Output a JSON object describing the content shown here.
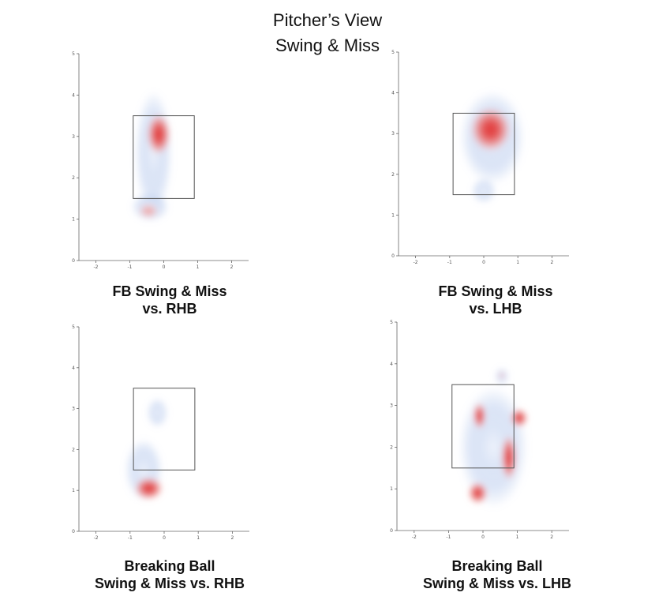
{
  "page": {
    "title_line1": "Pitcher’s View",
    "title_line2": "Swing & Miss"
  },
  "chart_data": [
    {
      "type": "heatmap",
      "title_line1": "FB Swing & Miss",
      "title_line2": "vs. RHB",
      "xlim": [
        -2.5,
        2.5
      ],
      "ylim": [
        0,
        5
      ],
      "x_ticks": [
        -2,
        -1,
        0,
        1,
        2
      ],
      "y_ticks": [
        0,
        1,
        2,
        3,
        4,
        5
      ],
      "strike_zone": {
        "x": [
          -0.9,
          0.9
        ],
        "y": [
          1.5,
          3.5
        ]
      },
      "density_blobs": [
        {
          "x": -0.3,
          "y": 2.6,
          "sx": 0.55,
          "sy": 1.5,
          "level": "low"
        },
        {
          "x": -0.4,
          "y": 1.3,
          "sx": 0.55,
          "sy": 0.35,
          "level": "low"
        },
        {
          "x": -0.15,
          "y": 3.05,
          "sx": 0.35,
          "sy": 0.5,
          "level": "high"
        },
        {
          "x": -0.45,
          "y": 1.2,
          "sx": 0.3,
          "sy": 0.18,
          "level": "medium"
        }
      ]
    },
    {
      "type": "heatmap",
      "title_line1": "FB Swing & Miss",
      "title_line2": "vs. LHB",
      "xlim": [
        -2.5,
        2.5
      ],
      "ylim": [
        0,
        5
      ],
      "x_ticks": [
        -2,
        -1,
        0,
        1,
        2
      ],
      "y_ticks": [
        0,
        1,
        2,
        3,
        4,
        5
      ],
      "strike_zone": {
        "x": [
          -0.9,
          0.9
        ],
        "y": [
          1.5,
          3.5
        ]
      },
      "density_blobs": [
        {
          "x": 0.25,
          "y": 2.9,
          "sx": 0.95,
          "sy": 1.15,
          "level": "low"
        },
        {
          "x": 0.0,
          "y": 1.6,
          "sx": 0.35,
          "sy": 0.3,
          "level": "low"
        },
        {
          "x": 0.2,
          "y": 3.1,
          "sx": 0.6,
          "sy": 0.55,
          "level": "high"
        }
      ]
    },
    {
      "type": "heatmap",
      "title_line1": "Breaking Ball",
      "title_line2": "Swing & Miss vs. RHB",
      "xlim": [
        -2.5,
        2.5
      ],
      "ylim": [
        0,
        5
      ],
      "x_ticks": [
        -2,
        -1,
        0,
        1,
        2
      ],
      "y_ticks": [
        0,
        1,
        2,
        3,
        4,
        5
      ],
      "strike_zone": {
        "x": [
          -0.9,
          0.9
        ],
        "y": [
          1.5,
          3.5
        ]
      },
      "density_blobs": [
        {
          "x": -0.2,
          "y": 2.9,
          "sx": 0.3,
          "sy": 0.35,
          "level": "low"
        },
        {
          "x": -0.6,
          "y": 1.5,
          "sx": 0.55,
          "sy": 0.75,
          "level": "low"
        },
        {
          "x": -0.45,
          "y": 1.05,
          "sx": 0.42,
          "sy": 0.28,
          "level": "high"
        }
      ]
    },
    {
      "type": "heatmap",
      "title_line1": "Breaking Ball",
      "title_line2": "Swing & Miss vs. LHB",
      "xlim": [
        -2.5,
        2.5
      ],
      "ylim": [
        0,
        5
      ],
      "x_ticks": [
        -2,
        -1,
        0,
        1,
        2
      ],
      "y_ticks": [
        0,
        1,
        2,
        3,
        4,
        5
      ],
      "strike_zone": {
        "x": [
          -0.9,
          0.9
        ],
        "y": [
          1.5,
          3.5
        ]
      },
      "density_blobs": [
        {
          "x": 0.3,
          "y": 2.0,
          "sx": 1.0,
          "sy": 1.45,
          "level": "low"
        },
        {
          "x": 0.55,
          "y": 3.7,
          "sx": 0.2,
          "sy": 0.2,
          "level": "low"
        },
        {
          "x": 0.55,
          "y": 3.72,
          "sx": 0.08,
          "sy": 0.08,
          "level": "medium"
        },
        {
          "x": -0.1,
          "y": 2.75,
          "sx": 0.18,
          "sy": 0.32,
          "level": "high"
        },
        {
          "x": 1.05,
          "y": 2.7,
          "sx": 0.25,
          "sy": 0.22,
          "level": "high"
        },
        {
          "x": 0.75,
          "y": 1.75,
          "sx": 0.22,
          "sy": 0.55,
          "level": "high"
        },
        {
          "x": -0.15,
          "y": 0.9,
          "sx": 0.28,
          "sy": 0.26,
          "level": "high"
        }
      ]
    }
  ]
}
